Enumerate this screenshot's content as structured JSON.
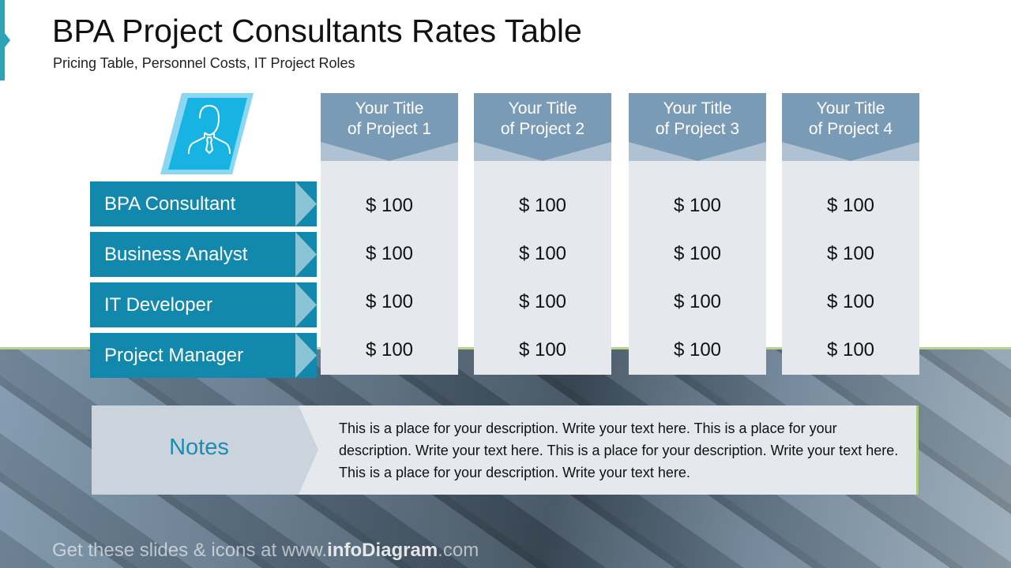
{
  "header": {
    "title": "BPA Project Consultants Rates Table",
    "subtitle": "Pricing Table, Personnel Costs, IT Project Roles"
  },
  "icon": "businessman-icon",
  "colors": {
    "label": "#1288ad",
    "header": "#7a9bb5",
    "cell": "#e5e8ed",
    "accent": "#2ea3b3",
    "green": "#a7cf7a"
  },
  "columns": [
    {
      "title": [
        "Your Title",
        "of Project 1"
      ],
      "values": [
        "$ 100",
        "$ 100",
        "$ 100",
        "$ 100"
      ]
    },
    {
      "title": [
        "Your Title",
        "of Project 2"
      ],
      "values": [
        "$ 100",
        "$ 100",
        "$ 100",
        "$ 100"
      ]
    },
    {
      "title": [
        "Your Title",
        "of Project 3"
      ],
      "values": [
        "$ 100",
        "$ 100",
        "$ 100",
        "$ 100"
      ]
    },
    {
      "title": [
        "Your Title",
        "of Project 4"
      ],
      "values": [
        "$ 100",
        "$ 100",
        "$ 100",
        "$ 100"
      ]
    }
  ],
  "roles": [
    "BPA Consultant",
    "Business Analyst",
    "IT Developer",
    "Project Manager"
  ],
  "notes": {
    "heading": "Notes",
    "text": "This is a place for your description. Write your text here. This is a place for your description. Write your text here. This is a place for your description. Write your text here. This is a place for your description. Write your text here."
  },
  "footer": {
    "prefix": "Get these slides & icons at www.",
    "brand": "infoDiagram",
    "suffix": ".com"
  }
}
